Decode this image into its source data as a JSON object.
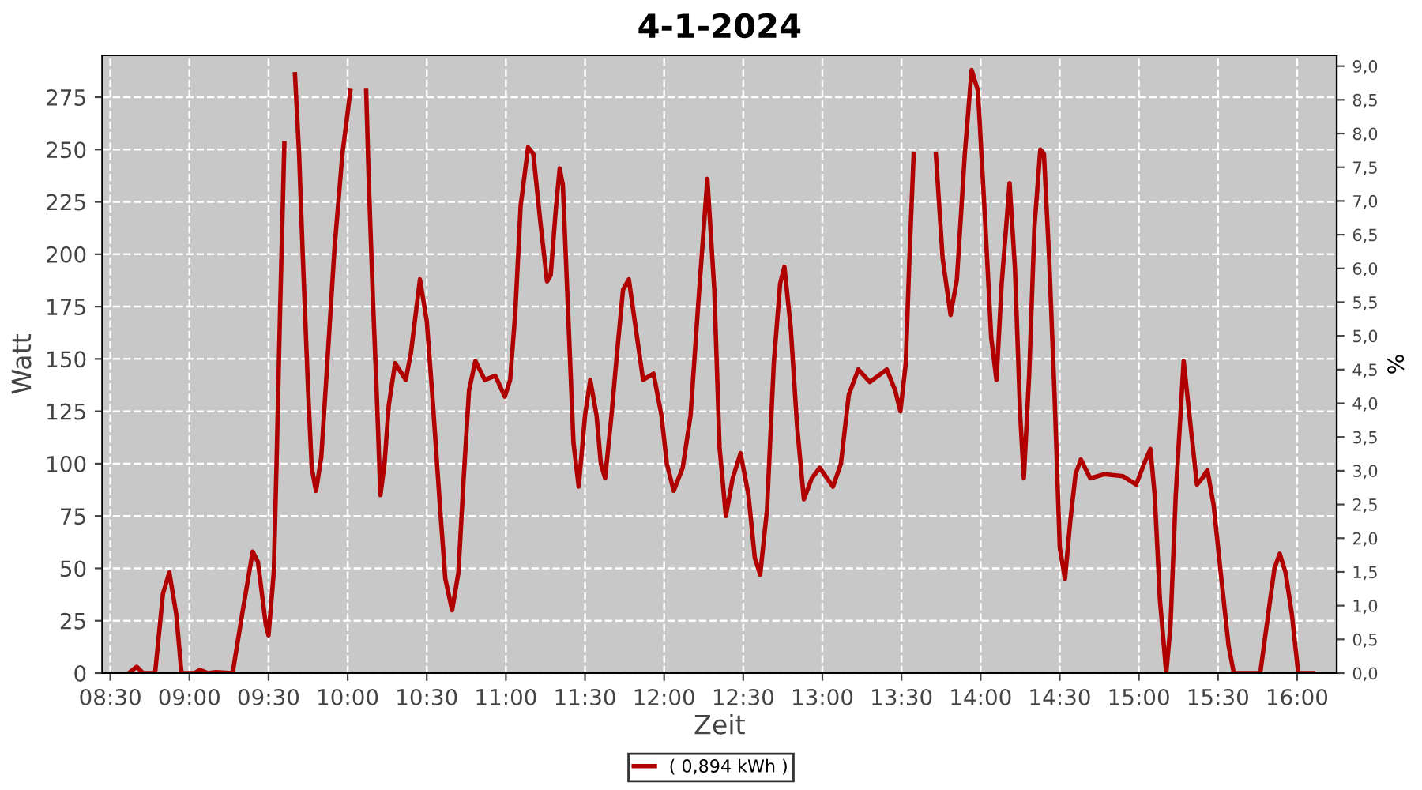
{
  "chart_data": {
    "type": "line",
    "title": "4-1-2024",
    "xlabel": "Zeit",
    "ylabel": "Watt",
    "y2label": "%",
    "xlim": [
      8.45,
      16.25
    ],
    "xticks": [
      {
        "value": 8.5,
        "label": "08:30"
      },
      {
        "value": 9,
        "label": "09:00"
      },
      {
        "value": 9.5,
        "label": "09:30"
      },
      {
        "value": 10,
        "label": "10:00"
      },
      {
        "value": 10.5,
        "label": "10:30"
      },
      {
        "value": 11,
        "label": "11:00"
      },
      {
        "value": 11.5,
        "label": "11:30"
      },
      {
        "value": 12,
        "label": "12:00"
      },
      {
        "value": 12.5,
        "label": "12:30"
      },
      {
        "value": 13,
        "label": "13:00"
      },
      {
        "value": 13.5,
        "label": "13:30"
      },
      {
        "value": 14,
        "label": "14:00"
      },
      {
        "value": 14.5,
        "label": "14:30"
      },
      {
        "value": 15,
        "label": "15:00"
      },
      {
        "value": 15.5,
        "label": "15:30"
      },
      {
        "value": 16,
        "label": "16:00"
      }
    ],
    "ylim": [
      0,
      295
    ],
    "yticks": [
      0,
      25,
      50,
      75,
      100,
      125,
      150,
      175,
      200,
      225,
      250,
      275
    ],
    "y2lim": [
      0,
      9.16
    ],
    "y2ticks": [
      {
        "value": 0,
        "label": "0,0"
      },
      {
        "value": 0.5,
        "label": "0,5"
      },
      {
        "value": 1,
        "label": "1,0"
      },
      {
        "value": 1.5,
        "label": "1,5"
      },
      {
        "value": 2,
        "label": "2,0"
      },
      {
        "value": 2.5,
        "label": "2,5"
      },
      {
        "value": 3,
        "label": "3,0"
      },
      {
        "value": 3.5,
        "label": "3,5"
      },
      {
        "value": 4,
        "label": "4,0"
      },
      {
        "value": 4.5,
        "label": "4,5"
      },
      {
        "value": 5,
        "label": "5,0"
      },
      {
        "value": 5.5,
        "label": "5,5"
      },
      {
        "value": 6,
        "label": "6,0"
      },
      {
        "value": 6.5,
        "label": "6,5"
      },
      {
        "value": 7,
        "label": "7,0"
      },
      {
        "value": 7.5,
        "label": "7,5"
      },
      {
        "value": 8,
        "label": "8,0"
      },
      {
        "value": 8.5,
        "label": "8,5"
      },
      {
        "value": 9,
        "label": "9,0"
      }
    ],
    "grid": true,
    "legend": "bottom",
    "marker": "none",
    "line_style": "solid",
    "series": [
      {
        "name": "( 0,894 kWh )",
        "color": "#b00000",
        "x": [
          8.617,
          8.667,
          8.707,
          8.783,
          8.833,
          8.873,
          8.917,
          8.95,
          9.033,
          9.067,
          9.117,
          9.167,
          9.273,
          9.333,
          9.4,
          9.433,
          9.483,
          9.5,
          9.533,
          9.55,
          9.573,
          9.6,
          9.623,
          9.65,
          9.667,
          9.693,
          9.717,
          9.75,
          9.773,
          9.8,
          9.833,
          9.867,
          9.917,
          9.967,
          10.017,
          10.05,
          10.1,
          10.117,
          10.133,
          10.16,
          10.183,
          10.207,
          10.233,
          10.26,
          10.3,
          10.367,
          10.4,
          10.457,
          10.5,
          10.533,
          10.583,
          10.617,
          10.66,
          10.7,
          10.733,
          10.767,
          10.807,
          10.867,
          10.933,
          10.993,
          11.027,
          11.06,
          11.093,
          11.14,
          11.173,
          11.217,
          11.26,
          11.283,
          11.317,
          11.34,
          11.36,
          11.39,
          11.427,
          11.46,
          11.5,
          11.533,
          11.573,
          11.6,
          11.627,
          11.667,
          11.7,
          11.74,
          11.777,
          11.833,
          11.867,
          11.933,
          11.983,
          12.017,
          12.06,
          12.117,
          12.167,
          12.217,
          12.273,
          12.317,
          12.35,
          12.39,
          12.433,
          12.483,
          12.533,
          12.573,
          12.607,
          12.65,
          12.693,
          12.733,
          12.76,
          12.8,
          12.84,
          12.883,
          12.933,
          12.983,
          13.067,
          13.117,
          13.167,
          13.227,
          13.3,
          13.407,
          13.46,
          13.493,
          13.527,
          13.55,
          13.577,
          13.617,
          13.667,
          13.717,
          13.76,
          13.81,
          13.85,
          13.9,
          13.943,
          13.983,
          14.027,
          14.067,
          14.1,
          14.133,
          14.183,
          14.217,
          14.25,
          14.273,
          14.307,
          14.34,
          14.377,
          14.4,
          14.433,
          14.467,
          14.5,
          14.533,
          14.567,
          14.6,
          14.633,
          14.693,
          14.783,
          14.9,
          14.983,
          15.033,
          15.073,
          15.1,
          15.133,
          15.173,
          15.2,
          15.233,
          15.283,
          15.327,
          15.367,
          15.4,
          15.433,
          15.473,
          15.517,
          15.567,
          15.6,
          15.767,
          15.817,
          15.857,
          15.89,
          15.927,
          15.967,
          16.007,
          16.1
        ],
        "values": [
          0,
          3,
          0,
          0,
          38,
          48,
          28,
          0,
          0,
          1.5,
          0,
          0.5,
          0,
          28,
          58,
          53,
          23,
          18,
          48,
          98,
          173,
          253,
          null,
          null,
          286,
          248,
          198,
          135,
          98,
          87,
          103,
          143,
          203,
          248,
          278,
          null,
          null,
          278,
          236,
          178,
          135,
          85,
          100,
          128,
          148,
          140,
          153,
          188,
          168,
          135,
          80,
          45,
          30,
          48,
          93,
          135,
          149,
          140,
          142,
          132,
          140,
          173,
          223,
          251,
          248,
          216,
          187,
          190,
          223,
          241,
          233,
          178,
          110,
          89,
          123,
          140,
          123,
          100,
          93,
          123,
          151,
          183,
          188,
          158,
          140,
          143,
          123,
          100,
          87,
          98,
          123,
          178,
          236,
          183,
          108,
          75,
          93,
          105,
          85,
          55,
          47,
          78,
          148,
          186,
          194,
          165,
          118,
          83,
          93,
          98,
          89,
          100,
          133,
          145,
          139,
          145,
          135,
          125,
          148,
          198,
          248,
          null,
          null,
          248,
          198,
          171,
          188,
          248,
          288,
          278,
          218,
          160,
          140,
          186,
          234,
          193,
          123,
          93,
          143,
          213,
          250,
          248,
          198,
          133,
          60,
          45,
          73,
          95,
          102,
          93,
          95,
          94,
          90,
          100,
          107,
          85,
          35,
          0,
          23,
          85,
          149,
          118,
          90,
          93,
          97,
          80,
          48,
          13,
          0,
          0,
          28,
          50,
          57,
          48,
          28,
          0,
          0
        ]
      }
    ]
  }
}
